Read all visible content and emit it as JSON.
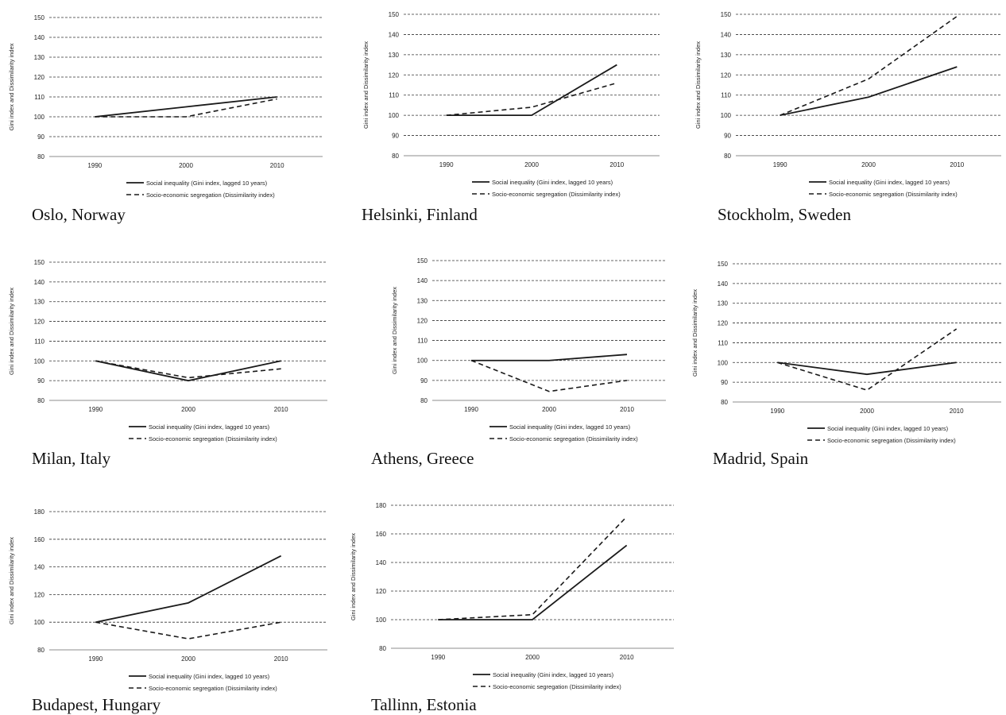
{
  "y_axis_label": "Gini index and Dissimilarity index",
  "legend": {
    "solid": "Social inequality (Gini index, lagged 10 years)",
    "dashed": "Socio-economic segregation (Dissimilarity index)"
  },
  "chart_data": [
    {
      "type": "line",
      "caption": "Oslo, Norway",
      "x": [
        "1990",
        "2000",
        "2010"
      ],
      "ylim": [
        80,
        150
      ],
      "yticks": [
        "80",
        "90",
        "100",
        "110",
        "120",
        "130",
        "140",
        "150"
      ],
      "series": [
        {
          "name": "Social inequality (Gini index, lagged 10 years)",
          "style": "solid",
          "values": [
            100,
            105,
            110
          ]
        },
        {
          "name": "Socio-economic segregation (Dissimilarity index)",
          "style": "dashed",
          "values": [
            100,
            100,
            109
          ]
        }
      ]
    },
    {
      "type": "line",
      "caption": "Helsinki, Finland",
      "x": [
        "1990",
        "2000",
        "2010"
      ],
      "ylim": [
        80,
        150
      ],
      "yticks": [
        "80",
        "90",
        "100",
        "110",
        "120",
        "130",
        "140",
        "150"
      ],
      "series": [
        {
          "name": "Social inequality (Gini index, lagged 10 years)",
          "style": "solid",
          "values": [
            100,
            100,
            125
          ]
        },
        {
          "name": "Socio-economic segregation (Dissimilarity index)",
          "style": "dashed",
          "values": [
            100,
            104,
            116
          ]
        }
      ]
    },
    {
      "type": "line",
      "caption": "Stockholm, Sweden",
      "x": [
        "1990",
        "2000",
        "2010"
      ],
      "ylim": [
        80,
        150
      ],
      "yticks": [
        "80",
        "90",
        "100",
        "110",
        "120",
        "130",
        "140",
        "150"
      ],
      "series": [
        {
          "name": "Social inequality (Gini index, lagged 10 years)",
          "style": "solid",
          "values": [
            100,
            109,
            124
          ]
        },
        {
          "name": "Socio-economic segregation (Dissimilarity index)",
          "style": "dashed",
          "values": [
            100,
            118,
            149
          ]
        }
      ]
    },
    {
      "type": "line",
      "caption": "Milan, Italy",
      "x": [
        "1990",
        "2000",
        "2010"
      ],
      "ylim": [
        80,
        150
      ],
      "yticks": [
        "80",
        "90",
        "100",
        "110",
        "120",
        "130",
        "140",
        "150"
      ],
      "series": [
        {
          "name": "Social inequality (Gini index, lagged 10 years)",
          "style": "solid",
          "values": [
            100,
            90,
            100
          ]
        },
        {
          "name": "Socio-economic segregation (Dissimilarity index)",
          "style": "dashed",
          "values": [
            100,
            91.5,
            96
          ]
        }
      ]
    },
    {
      "type": "line",
      "caption": "Athens, Greece",
      "x": [
        "1990",
        "2000",
        "2010"
      ],
      "ylim": [
        80,
        150
      ],
      "yticks": [
        "80",
        "90",
        "100",
        "110",
        "120",
        "130",
        "140",
        "150"
      ],
      "series": [
        {
          "name": "Social inequality (Gini index, lagged 10 years)",
          "style": "solid",
          "values": [
            100,
            100,
            103
          ]
        },
        {
          "name": "Socio-economic segregation (Dissimilarity index)",
          "style": "dashed",
          "values": [
            100,
            84.5,
            90
          ]
        }
      ]
    },
    {
      "type": "line",
      "caption": "Madrid, Spain",
      "x": [
        "1990",
        "2000",
        "2010"
      ],
      "ylim": [
        80,
        150
      ],
      "yticks": [
        "80",
        "90",
        "100",
        "110",
        "120",
        "130",
        "140",
        "150"
      ],
      "series": [
        {
          "name": "Social inequality (Gini index, lagged 10 years)",
          "style": "solid",
          "values": [
            100,
            94,
            100
          ]
        },
        {
          "name": "Socio-economic segregation (Dissimilarity index)",
          "style": "dashed",
          "values": [
            100,
            86,
            117
          ]
        }
      ]
    },
    {
      "type": "line",
      "caption": "Budapest, Hungary",
      "x": [
        "1990",
        "2000",
        "2010"
      ],
      "ylim": [
        80,
        180
      ],
      "yticks": [
        "80",
        "100",
        "120",
        "140",
        "160",
        "180"
      ],
      "series": [
        {
          "name": "Social inequality (Gini index, lagged 10 years)",
          "style": "solid",
          "values": [
            100,
            114,
            148
          ]
        },
        {
          "name": "Socio-economic segregation (Dissimilarity index)",
          "style": "dashed",
          "values": [
            100,
            88,
            100
          ]
        }
      ]
    },
    {
      "type": "line",
      "caption": "Tallinn, Estonia",
      "x": [
        "1990",
        "2000",
        "2010"
      ],
      "ylim": [
        80,
        180
      ],
      "yticks": [
        "80",
        "100",
        "120",
        "140",
        "160",
        "180"
      ],
      "series": [
        {
          "name": "Social inequality (Gini index, lagged 10 years)",
          "style": "solid",
          "values": [
            100,
            100,
            152
          ]
        },
        {
          "name": "Socio-economic segregation (Dissimilarity index)",
          "style": "dashed",
          "values": [
            100,
            103.5,
            172
          ]
        }
      ]
    }
  ]
}
